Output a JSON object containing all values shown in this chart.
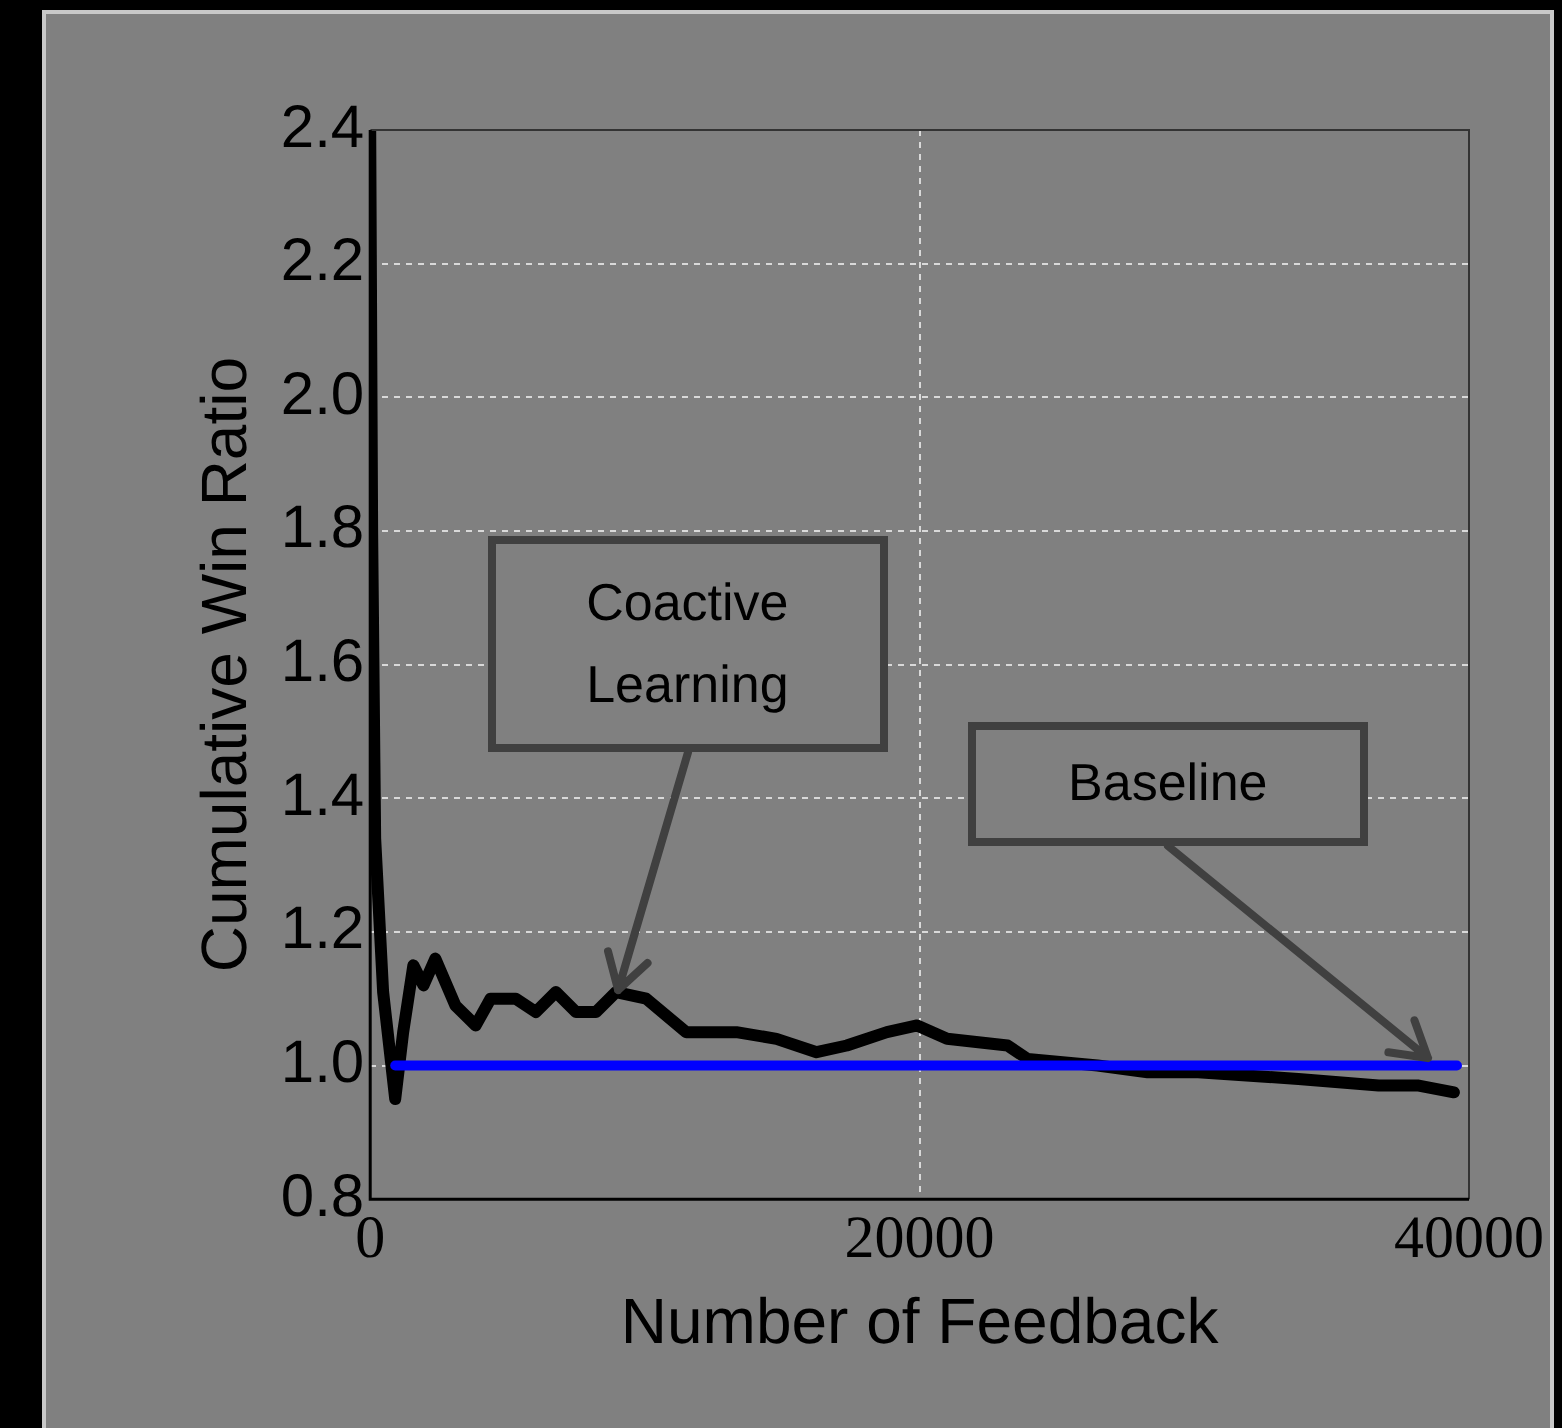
{
  "chart_data": {
    "type": "line",
    "xlabel": "Number of Feedback",
    "ylabel": "Cumulative Win Ratio",
    "xlim": [
      0,
      40000
    ],
    "xticks": [
      0,
      20000,
      40000
    ],
    "ylim": [
      0.8,
      2.4
    ],
    "yticks": [
      0.8,
      {
        "value": 1,
        "label": "1.0"
      },
      1.2,
      1.4,
      1.6,
      1.8,
      {
        "value": 2,
        "label": "2.0"
      },
      2.2,
      2.4
    ],
    "grid": true,
    "legend": false,
    "marker": "none",
    "line_style": "solid",
    "series": [
      {
        "color": "#000000",
        "x": [
          0,
          70,
          180,
          470,
          910,
          1200,
          1570,
          1940,
          2370,
          3100,
          3840,
          4380,
          5300,
          6030,
          6760,
          7490,
          8220,
          8950,
          10050,
          11500,
          13330,
          14790,
          16250,
          17350,
          18810,
          19910,
          21000,
          23200,
          23930,
          26480,
          28300,
          30140,
          33790,
          36710,
          38170,
          39450
        ],
        "values": [
          2.4,
          1.8,
          1.34,
          1.11,
          0.95,
          1.05,
          1.15,
          1.12,
          1.16,
          1.09,
          1.06,
          1.1,
          1.1,
          1.08,
          1.11,
          1.08,
          1.08,
          1.11,
          1.1,
          1.05,
          1.05,
          1.04,
          1.02,
          1.03,
          1.05,
          1.06,
          1.04,
          1.03,
          1.01,
          1.0,
          0.99,
          0.99,
          0.98,
          0.97,
          0.97,
          0.96
        ]
      },
      {
        "color": "#0000ff",
        "x": [
          910,
          39560
        ],
        "values": [
          1.0,
          1.0
        ]
      }
    ],
    "annotations": [
      {
        "text": "Coactive\nLearning",
        "x": 9000,
        "y": 1.1
      },
      {
        "text": "Baseline",
        "x": 38500,
        "y": 1.0
      }
    ]
  }
}
